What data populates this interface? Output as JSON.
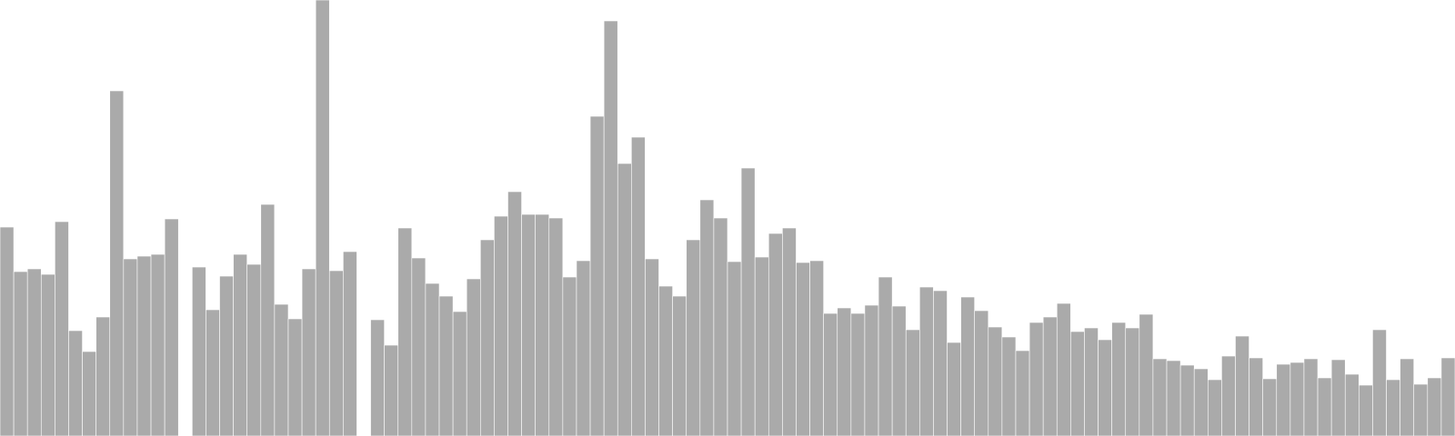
{
  "chart_data": {
    "type": "bar",
    "title": "",
    "xlabel": "",
    "ylabel": "",
    "ylim": [
      0,
      480
    ],
    "grid": false,
    "legend": "none",
    "bar_color": "#aaaaaa",
    "values": [
      230,
      181,
      184,
      178,
      236,
      116,
      93,
      131,
      380,
      195,
      198,
      200,
      239,
      null,
      186,
      139,
      176,
      200,
      189,
      255,
      145,
      129,
      184,
      480,
      182,
      203,
      null,
      128,
      100,
      229,
      196,
      168,
      154,
      137,
      173,
      216,
      242,
      269,
      244,
      244,
      240,
      175,
      193,
      352,
      457,
      300,
      329,
      195,
      165,
      154,
      216,
      260,
      240,
      192,
      295,
      197,
      223,
      229,
      191,
      193,
      135,
      141,
      135,
      144,
      175,
      143,
      117,
      164,
      160,
      103,
      153,
      138,
      120,
      109,
      94,
      125,
      131,
      146,
      115,
      119,
      106,
      125,
      119,
      134,
      85,
      83,
      78,
      74,
      62,
      88,
      110,
      86,
      63,
      79,
      81,
      85,
      64,
      84,
      68,
      56,
      117,
      62,
      85,
      57,
      64,
      86
    ]
  }
}
